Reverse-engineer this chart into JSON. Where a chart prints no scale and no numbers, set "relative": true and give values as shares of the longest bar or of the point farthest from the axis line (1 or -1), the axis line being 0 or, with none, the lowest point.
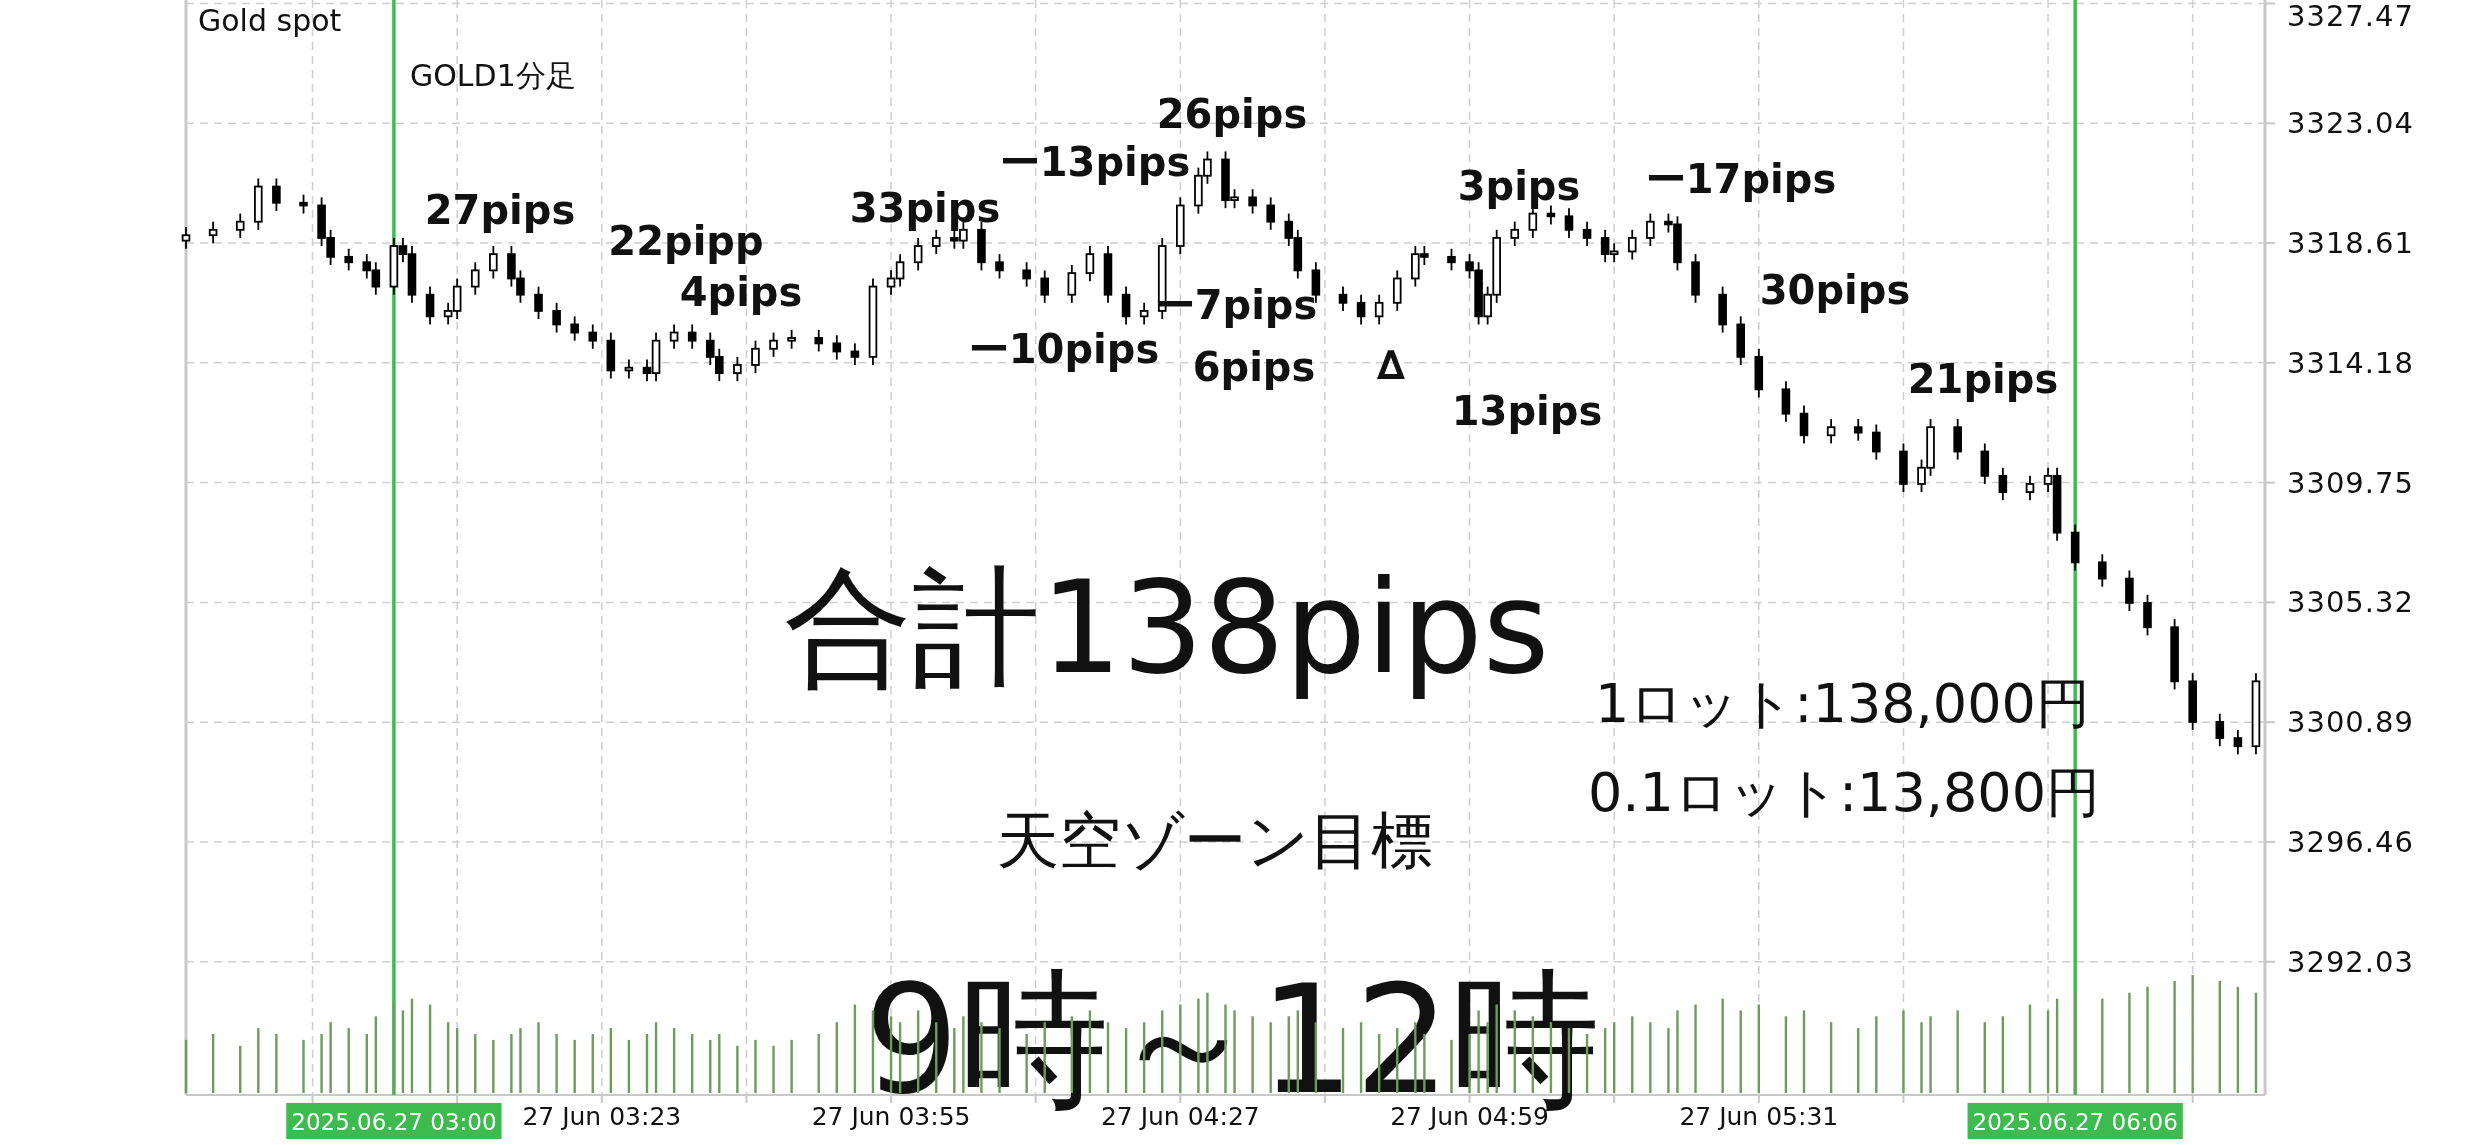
{
  "chart_data": [
    {
      "type": "candlestick",
      "title": "Gold spot",
      "x": [
        "2025-06-27T02:37",
        "2025-06-27T02:40",
        "2025-06-27T02:43",
        "2025-06-27T02:45",
        "2025-06-27T02:47",
        "2025-06-27T02:50",
        "2025-06-27T02:52",
        "2025-06-27T02:53",
        "2025-06-27T02:55",
        "2025-06-27T02:57",
        "2025-06-27T02:58",
        "2025-06-27T03:00",
        "2025-06-27T03:01",
        "2025-06-27T03:02",
        "2025-06-27T03:04",
        "2025-06-27T03:06",
        "2025-06-27T03:07",
        "2025-06-27T03:09",
        "2025-06-27T03:11",
        "2025-06-27T03:13",
        "2025-06-27T03:14",
        "2025-06-27T03:16",
        "2025-06-27T03:18",
        "2025-06-27T03:20",
        "2025-06-27T03:22",
        "2025-06-27T03:24",
        "2025-06-27T03:26",
        "2025-06-27T03:28",
        "2025-06-27T03:29",
        "2025-06-27T03:31",
        "2025-06-27T03:33",
        "2025-06-27T03:35",
        "2025-06-27T03:36",
        "2025-06-27T03:38",
        "2025-06-27T03:40",
        "2025-06-27T03:42",
        "2025-06-27T03:44",
        "2025-06-27T03:47",
        "2025-06-27T03:49",
        "2025-06-27T03:51",
        "2025-06-27T03:53",
        "2025-06-27T03:55",
        "2025-06-27T03:56",
        "2025-06-27T03:58",
        "2025-06-27T04:00",
        "2025-06-27T04:02",
        "2025-06-27T04:03",
        "2025-06-27T04:05",
        "2025-06-27T04:07",
        "2025-06-27T04:10",
        "2025-06-27T04:12",
        "2025-06-27T04:15",
        "2025-06-27T04:17",
        "2025-06-27T04:19",
        "2025-06-27T04:21",
        "2025-06-27T04:23",
        "2025-06-27T04:25",
        "2025-06-27T04:27",
        "2025-06-27T04:29",
        "2025-06-27T04:30",
        "2025-06-27T04:32",
        "2025-06-27T04:33",
        "2025-06-27T04:35",
        "2025-06-27T04:37",
        "2025-06-27T04:39",
        "2025-06-27T04:40",
        "2025-06-27T04:42",
        "2025-06-27T04:45",
        "2025-06-27T04:47",
        "2025-06-27T04:49",
        "2025-06-27T04:51",
        "2025-06-27T04:53",
        "2025-06-27T04:54",
        "2025-06-27T04:57",
        "2025-06-27T04:59",
        "2025-06-27T05:00",
        "2025-06-27T05:01",
        "2025-06-27T05:02",
        "2025-06-27T05:04",
        "2025-06-27T05:06",
        "2025-06-27T05:08",
        "2025-06-27T05:10",
        "2025-06-27T05:12",
        "2025-06-27T05:14",
        "2025-06-27T05:15",
        "2025-06-27T05:17",
        "2025-06-27T05:19",
        "2025-06-27T05:21",
        "2025-06-27T05:22",
        "2025-06-27T05:24",
        "2025-06-27T05:27",
        "2025-06-27T05:29",
        "2025-06-27T05:31",
        "2025-06-27T05:34",
        "2025-06-27T05:36",
        "2025-06-27T05:39",
        "2025-06-27T05:42",
        "2025-06-27T05:44",
        "2025-06-27T05:47",
        "2025-06-27T05:49",
        "2025-06-27T05:50",
        "2025-06-27T05:53",
        "2025-06-27T05:56",
        "2025-06-27T05:58",
        "2025-06-27T06:01",
        "2025-06-27T06:03",
        "2025-06-27T06:04",
        "2025-06-27T06:06",
        "2025-06-27T06:09",
        "2025-06-27T06:12",
        "2025-06-27T06:14",
        "2025-06-27T06:17",
        "2025-06-27T06:19",
        "2025-06-27T06:22",
        "2025-06-27T06:24",
        "2025-06-27T06:26"
      ],
      "ohlc": [
        [
          3318.7,
          3319.2,
          3318.4,
          3318.9
        ],
        [
          3318.9,
          3319.4,
          3318.6,
          3319.1
        ],
        [
          3319.1,
          3319.7,
          3318.8,
          3319.4
        ],
        [
          3319.4,
          3321.0,
          3319.1,
          3320.7
        ],
        [
          3320.7,
          3321.0,
          3319.8,
          3320.1
        ],
        [
          3320.1,
          3320.4,
          3319.7,
          3320.0
        ],
        [
          3320.0,
          3320.3,
          3318.5,
          3318.8
        ],
        [
          3318.8,
          3319.1,
          3317.8,
          3318.1
        ],
        [
          3318.1,
          3318.4,
          3317.6,
          3317.9
        ],
        [
          3317.9,
          3318.2,
          3317.3,
          3317.6
        ],
        [
          3317.6,
          3317.9,
          3316.7,
          3317.0
        ],
        [
          3317.0,
          3318.8,
          3316.7,
          3318.5
        ],
        [
          3318.5,
          3318.8,
          3317.9,
          3318.2
        ],
        [
          3318.2,
          3318.5,
          3316.4,
          3316.7
        ],
        [
          3316.7,
          3317.0,
          3315.6,
          3315.9
        ],
        [
          3315.9,
          3316.4,
          3315.6,
          3316.1
        ],
        [
          3316.1,
          3317.3,
          3315.8,
          3317.0
        ],
        [
          3317.0,
          3317.9,
          3316.7,
          3317.6
        ],
        [
          3317.6,
          3318.5,
          3317.3,
          3318.2
        ],
        [
          3318.2,
          3318.5,
          3317.0,
          3317.3
        ],
        [
          3317.3,
          3317.6,
          3316.4,
          3316.7
        ],
        [
          3316.7,
          3317.0,
          3315.8,
          3316.1
        ],
        [
          3316.1,
          3316.4,
          3315.3,
          3315.6
        ],
        [
          3315.6,
          3315.9,
          3315.0,
          3315.3
        ],
        [
          3315.3,
          3315.6,
          3314.7,
          3315.0
        ],
        [
          3315.0,
          3315.3,
          3313.6,
          3313.9
        ],
        [
          3313.9,
          3314.3,
          3313.6,
          3314.0
        ],
        [
          3314.0,
          3314.3,
          3313.5,
          3313.8
        ],
        [
          3313.8,
          3315.3,
          3313.5,
          3315.0
        ],
        [
          3315.0,
          3315.6,
          3314.7,
          3315.3
        ],
        [
          3315.3,
          3315.6,
          3314.7,
          3315.0
        ],
        [
          3315.0,
          3315.3,
          3314.1,
          3314.4
        ],
        [
          3314.4,
          3314.7,
          3313.5,
          3313.8
        ],
        [
          3313.8,
          3314.4,
          3313.5,
          3314.1
        ],
        [
          3314.1,
          3315.0,
          3313.8,
          3314.7
        ],
        [
          3314.7,
          3315.3,
          3314.4,
          3315.0
        ],
        [
          3315.0,
          3315.4,
          3314.7,
          3315.1
        ],
        [
          3315.1,
          3315.4,
          3314.6,
          3314.9
        ],
        [
          3314.9,
          3315.2,
          3314.3,
          3314.6
        ],
        [
          3314.6,
          3314.9,
          3314.1,
          3314.4
        ],
        [
          3314.4,
          3317.3,
          3314.1,
          3317.0
        ],
        [
          3317.0,
          3317.6,
          3316.7,
          3317.3
        ],
        [
          3317.3,
          3318.2,
          3317.0,
          3317.9
        ],
        [
          3317.9,
          3318.8,
          3317.6,
          3318.5
        ],
        [
          3318.5,
          3319.1,
          3318.2,
          3318.8
        ],
        [
          3318.8,
          3319.1,
          3318.4,
          3318.7
        ],
        [
          3318.7,
          3319.4,
          3318.4,
          3319.1
        ],
        [
          3319.1,
          3319.4,
          3317.6,
          3317.9
        ],
        [
          3317.9,
          3318.2,
          3317.3,
          3317.6
        ],
        [
          3317.6,
          3317.9,
          3317.0,
          3317.3
        ],
        [
          3317.3,
          3317.6,
          3316.4,
          3316.7
        ],
        [
          3316.7,
          3317.8,
          3316.4,
          3317.5
        ],
        [
          3317.5,
          3318.5,
          3317.2,
          3318.2
        ],
        [
          3318.2,
          3318.5,
          3316.4,
          3316.7
        ],
        [
          3316.7,
          3317.0,
          3315.6,
          3315.9
        ],
        [
          3315.9,
          3316.4,
          3315.6,
          3316.1
        ],
        [
          3316.1,
          3318.8,
          3315.8,
          3318.5
        ],
        [
          3318.5,
          3320.3,
          3318.2,
          3320.0
        ],
        [
          3320.0,
          3321.4,
          3319.7,
          3321.1
        ],
        [
          3321.1,
          3322.0,
          3320.8,
          3321.7
        ],
        [
          3321.7,
          3322.0,
          3319.9,
          3320.2
        ],
        [
          3320.2,
          3320.6,
          3319.9,
          3320.3
        ],
        [
          3320.3,
          3320.6,
          3319.7,
          3320.0
        ],
        [
          3320.0,
          3320.3,
          3319.1,
          3319.4
        ],
        [
          3319.4,
          3319.7,
          3318.5,
          3318.8
        ],
        [
          3318.8,
          3319.1,
          3317.3,
          3317.6
        ],
        [
          3317.6,
          3317.9,
          3316.4,
          3316.7
        ],
        [
          3316.7,
          3317.0,
          3316.1,
          3316.4
        ],
        [
          3316.4,
          3316.7,
          3315.6,
          3315.9
        ],
        [
          3315.9,
          3316.7,
          3315.6,
          3316.4
        ],
        [
          3316.4,
          3317.6,
          3316.1,
          3317.3
        ],
        [
          3317.3,
          3318.5,
          3317.0,
          3318.2
        ],
        [
          3318.2,
          3318.5,
          3317.8,
          3318.1
        ],
        [
          3318.1,
          3318.4,
          3317.6,
          3317.9
        ],
        [
          3317.9,
          3318.2,
          3317.3,
          3317.6
        ],
        [
          3317.6,
          3317.9,
          3315.6,
          3315.9
        ],
        [
          3315.9,
          3317.0,
          3315.6,
          3316.7
        ],
        [
          3316.7,
          3319.1,
          3316.4,
          3318.8
        ],
        [
          3318.8,
          3319.4,
          3318.5,
          3319.1
        ],
        [
          3319.1,
          3320.0,
          3318.8,
          3319.7
        ],
        [
          3319.7,
          3320.0,
          3319.3,
          3319.6
        ],
        [
          3319.6,
          3319.9,
          3318.8,
          3319.1
        ],
        [
          3319.1,
          3319.4,
          3318.5,
          3318.8
        ],
        [
          3318.8,
          3319.1,
          3317.9,
          3318.2
        ],
        [
          3318.2,
          3318.6,
          3317.9,
          3318.3
        ],
        [
          3318.3,
          3319.1,
          3318.0,
          3318.8
        ],
        [
          3318.8,
          3319.7,
          3318.5,
          3319.4
        ],
        [
          3319.4,
          3319.7,
          3319.0,
          3319.3
        ],
        [
          3319.3,
          3319.6,
          3317.6,
          3317.9
        ],
        [
          3317.9,
          3318.2,
          3316.4,
          3316.7
        ],
        [
          3316.7,
          3317.0,
          3315.3,
          3315.6
        ],
        [
          3315.6,
          3315.9,
          3314.1,
          3314.4
        ],
        [
          3314.4,
          3314.7,
          3312.9,
          3313.2
        ],
        [
          3313.2,
          3313.5,
          3312.0,
          3312.3
        ],
        [
          3312.3,
          3312.6,
          3311.2,
          3311.5
        ],
        [
          3311.5,
          3312.1,
          3311.2,
          3311.8
        ],
        [
          3311.8,
          3312.1,
          3311.3,
          3311.6
        ],
        [
          3311.6,
          3311.9,
          3310.6,
          3310.9
        ],
        [
          3310.9,
          3311.2,
          3309.4,
          3309.7
        ],
        [
          3309.7,
          3310.6,
          3309.4,
          3310.3
        ],
        [
          3310.3,
          3312.1,
          3310.0,
          3311.8
        ],
        [
          3311.8,
          3312.1,
          3310.6,
          3310.9
        ],
        [
          3310.9,
          3311.2,
          3309.7,
          3310.0
        ],
        [
          3310.0,
          3310.3,
          3309.1,
          3309.4
        ],
        [
          3309.4,
          3310.0,
          3309.1,
          3309.7
        ],
        [
          3309.7,
          3310.3,
          3309.4,
          3310.0
        ],
        [
          3310.0,
          3310.3,
          3307.6,
          3307.9
        ],
        [
          3307.9,
          3308.2,
          3306.5,
          3306.8
        ],
        [
          3306.8,
          3307.1,
          3305.9,
          3306.2
        ],
        [
          3306.2,
          3306.5,
          3305.0,
          3305.3
        ],
        [
          3305.3,
          3305.6,
          3304.1,
          3304.4
        ],
        [
          3304.4,
          3304.7,
          3302.1,
          3302.4
        ],
        [
          3302.4,
          3302.7,
          3300.6,
          3300.9
        ],
        [
          3300.9,
          3301.2,
          3300.0,
          3300.3
        ],
        [
          3300.3,
          3300.6,
          3299.7,
          3300.0
        ],
        [
          3300.0,
          3302.7,
          3299.7,
          3302.4
        ]
      ],
      "xlim": [
        "2025-06-27T02:37",
        "2025-06-27T06:27"
      ],
      "ylim": [
        3287.1,
        3327.6
      ],
      "xticks": [
        {
          "value": "2025-06-27T02:51",
          "label": null
        },
        {
          "value": "2025-06-27T03:07",
          "label": null
        },
        {
          "value": "2025-06-27T03:23",
          "label": "27 Jun 03:23"
        },
        {
          "value": "2025-06-27T03:39",
          "label": null
        },
        {
          "value": "2025-06-27T03:55",
          "label": "27 Jun 03:55"
        },
        {
          "value": "2025-06-27T04:11",
          "label": null
        },
        {
          "value": "2025-06-27T04:27",
          "label": "27 Jun 04:27"
        },
        {
          "value": "2025-06-27T04:43",
          "label": null
        },
        {
          "value": "2025-06-27T04:59",
          "label": "27 Jun 04:59"
        },
        {
          "value": "2025-06-27T05:15",
          "label": null
        },
        {
          "value": "2025-06-27T05:31",
          "label": "27 Jun 05:31"
        },
        {
          "value": "2025-06-27T05:47",
          "label": null
        },
        {
          "value": "2025-06-27T06:03",
          "label": null
        },
        {
          "value": "2025-06-27T06:19",
          "label": null
        }
      ],
      "yticks": [
        3292.03,
        3296.46,
        3300.89,
        3305.32,
        3309.75,
        3314.18,
        3318.61,
        3323.04,
        3327.47
      ],
      "grid": true,
      "ref_lines": [
        {
          "axis": "x",
          "value": "2025-06-27T03:00",
          "label": "2025.06.27 03:00",
          "color": "#3dbb4f"
        },
        {
          "axis": "x",
          "value": "2025-06-27T06:06",
          "label": "2025.06.27 06:06",
          "color": "#3dbb4f"
        }
      ],
      "annotations": [
        "27pips",
        "22pipp",
        "4pips",
        "33pips",
        "ー13pips",
        "26pips",
        "ー10pips",
        "ー7pips",
        "6pips",
        "∆",
        "3pips",
        "13pips",
        "ー17pips",
        "30pips",
        "21pips",
        "GOLD1分足",
        "合計138pips",
        "1ロット:138,000円",
        "0.1ロット:13,800円",
        "天空ゾーン目標",
        "9時～12時"
      ]
    },
    {
      "type": "bar",
      "relative": true,
      "color": "#6e9b5e",
      "xlim": [
        "2025-06-27T02:37",
        "2025-06-27T06:27"
      ],
      "x": [
        "2025-06-27T02:37",
        "2025-06-27T02:40",
        "2025-06-27T02:43",
        "2025-06-27T02:45",
        "2025-06-27T02:47",
        "2025-06-27T02:50",
        "2025-06-27T02:52",
        "2025-06-27T02:53",
        "2025-06-27T02:55",
        "2025-06-27T02:57",
        "2025-06-27T02:58",
        "2025-06-27T03:00",
        "2025-06-27T03:01",
        "2025-06-27T03:02",
        "2025-06-27T03:04",
        "2025-06-27T03:06",
        "2025-06-27T03:07",
        "2025-06-27T03:09",
        "2025-06-27T03:11",
        "2025-06-27T03:13",
        "2025-06-27T03:14",
        "2025-06-27T03:16",
        "2025-06-27T03:18",
        "2025-06-27T03:20",
        "2025-06-27T03:22",
        "2025-06-27T03:24",
        "2025-06-27T03:26",
        "2025-06-27T03:28",
        "2025-06-27T03:29",
        "2025-06-27T03:31",
        "2025-06-27T03:33",
        "2025-06-27T03:35",
        "2025-06-27T03:36",
        "2025-06-27T03:38",
        "2025-06-27T03:40",
        "2025-06-27T03:42",
        "2025-06-27T03:44",
        "2025-06-27T03:47",
        "2025-06-27T03:49",
        "2025-06-27T03:51",
        "2025-06-27T03:53",
        "2025-06-27T03:55",
        "2025-06-27T03:56",
        "2025-06-27T03:58",
        "2025-06-27T04:00",
        "2025-06-27T04:02",
        "2025-06-27T04:03",
        "2025-06-27T04:05",
        "2025-06-27T04:07",
        "2025-06-27T04:10",
        "2025-06-27T04:12",
        "2025-06-27T04:15",
        "2025-06-27T04:17",
        "2025-06-27T04:19",
        "2025-06-27T04:21",
        "2025-06-27T04:23",
        "2025-06-27T04:25",
        "2025-06-27T04:27",
        "2025-06-27T04:29",
        "2025-06-27T04:30",
        "2025-06-27T04:32",
        "2025-06-27T04:33",
        "2025-06-27T04:35",
        "2025-06-27T04:37",
        "2025-06-27T04:39",
        "2025-06-27T04:40",
        "2025-06-27T04:42",
        "2025-06-27T04:45",
        "2025-06-27T04:47",
        "2025-06-27T04:49",
        "2025-06-27T04:51",
        "2025-06-27T04:53",
        "2025-06-27T04:54",
        "2025-06-27T04:57",
        "2025-06-27T04:59",
        "2025-06-27T05:00",
        "2025-06-27T05:01",
        "2025-06-27T05:02",
        "2025-06-27T05:04",
        "2025-06-27T05:06",
        "2025-06-27T05:08",
        "2025-06-27T05:10",
        "2025-06-27T05:12",
        "2025-06-27T05:14",
        "2025-06-27T05:15",
        "2025-06-27T05:17",
        "2025-06-27T05:19",
        "2025-06-27T05:21",
        "2025-06-27T05:22",
        "2025-06-27T05:24",
        "2025-06-27T05:27",
        "2025-06-27T05:29",
        "2025-06-27T05:31",
        "2025-06-27T05:34",
        "2025-06-27T05:36",
        "2025-06-27T05:39",
        "2025-06-27T05:42",
        "2025-06-27T05:44",
        "2025-06-27T05:47",
        "2025-06-27T05:49",
        "2025-06-27T05:50",
        "2025-06-27T05:53",
        "2025-06-27T05:56",
        "2025-06-27T05:58",
        "2025-06-27T06:01",
        "2025-06-27T06:03",
        "2025-06-27T06:04",
        "2025-06-27T06:06",
        "2025-06-27T06:09",
        "2025-06-27T06:12",
        "2025-06-27T06:14",
        "2025-06-27T06:17",
        "2025-06-27T06:19",
        "2025-06-27T06:22",
        "2025-06-27T06:24",
        "2025-06-27T06:26"
      ],
      "values": [
        0.45,
        0.5,
        0.4,
        0.55,
        0.5,
        0.45,
        0.5,
        0.6,
        0.55,
        0.5,
        0.65,
        0.75,
        0.7,
        0.8,
        0.75,
        0.6,
        0.55,
        0.5,
        0.45,
        0.5,
        0.55,
        0.6,
        0.5,
        0.45,
        0.5,
        0.55,
        0.45,
        0.5,
        0.6,
        0.55,
        0.5,
        0.45,
        0.5,
        0.4,
        0.45,
        0.4,
        0.45,
        0.5,
        0.6,
        0.75,
        0.7,
        0.65,
        0.6,
        0.7,
        0.6,
        0.55,
        0.65,
        0.6,
        0.55,
        0.5,
        0.6,
        0.65,
        0.7,
        0.6,
        0.55,
        0.6,
        0.7,
        0.75,
        0.8,
        0.85,
        0.75,
        0.7,
        0.65,
        0.6,
        0.65,
        0.7,
        0.6,
        0.55,
        0.6,
        0.5,
        0.55,
        0.6,
        0.5,
        0.45,
        0.5,
        0.7,
        0.6,
        0.75,
        0.7,
        0.65,
        0.6,
        0.55,
        0.5,
        0.55,
        0.6,
        0.65,
        0.6,
        0.55,
        0.7,
        0.75,
        0.8,
        0.7,
        0.75,
        0.65,
        0.7,
        0.6,
        0.55,
        0.65,
        0.7,
        0.6,
        0.65,
        0.7,
        0.6,
        0.65,
        0.75,
        0.7,
        0.8,
        0.85,
        0.8,
        0.85,
        0.9,
        0.95,
        1.0,
        0.95,
        0.9,
        0.85
      ]
    }
  ]
}
